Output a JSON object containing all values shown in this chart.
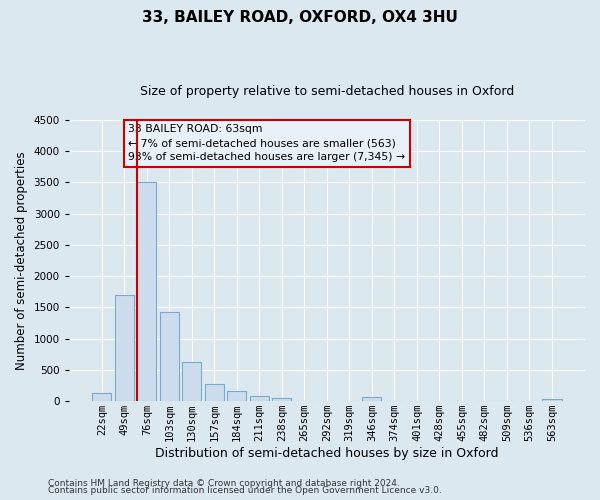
{
  "title": "33, BAILEY ROAD, OXFORD, OX4 3HU",
  "subtitle": "Size of property relative to semi-detached houses in Oxford",
  "xlabel": "Distribution of semi-detached houses by size in Oxford",
  "ylabel": "Number of semi-detached properties",
  "bar_labels": [
    "22sqm",
    "49sqm",
    "76sqm",
    "103sqm",
    "130sqm",
    "157sqm",
    "184sqm",
    "211sqm",
    "238sqm",
    "265sqm",
    "292sqm",
    "319sqm",
    "346sqm",
    "374sqm",
    "401sqm",
    "428sqm",
    "455sqm",
    "482sqm",
    "509sqm",
    "536sqm",
    "563sqm"
  ],
  "bar_values": [
    130,
    1700,
    3500,
    1430,
    620,
    270,
    155,
    85,
    50,
    0,
    0,
    0,
    60,
    0,
    0,
    0,
    0,
    0,
    0,
    0,
    40
  ],
  "bar_color": "#ccdcec",
  "bar_edge_color": "#7aaac8",
  "ylim": [
    0,
    4500
  ],
  "yticks": [
    0,
    500,
    1000,
    1500,
    2000,
    2500,
    3000,
    3500,
    4000,
    4500
  ],
  "annotation_title": "33 BAILEY ROAD: 63sqm",
  "annotation_line1": "← 7% of semi-detached houses are smaller (563)",
  "annotation_line2": "93% of semi-detached houses are larger (7,345) →",
  "footnote1": "Contains HM Land Registry data © Crown copyright and database right 2024.",
  "footnote2": "Contains public sector information licensed under the Open Government Licence v3.0.",
  "bg_color": "#dce8f0",
  "grid_color": "#ffffff",
  "annotation_box_facecolor": "#e8f0f8",
  "annotation_box_edge": "#cc0000",
  "red_line_color": "#cc0000",
  "title_fontsize": 11,
  "subtitle_fontsize": 9,
  "tick_fontsize": 7.5,
  "ylabel_fontsize": 8.5,
  "xlabel_fontsize": 9,
  "footnote_fontsize": 6.5
}
